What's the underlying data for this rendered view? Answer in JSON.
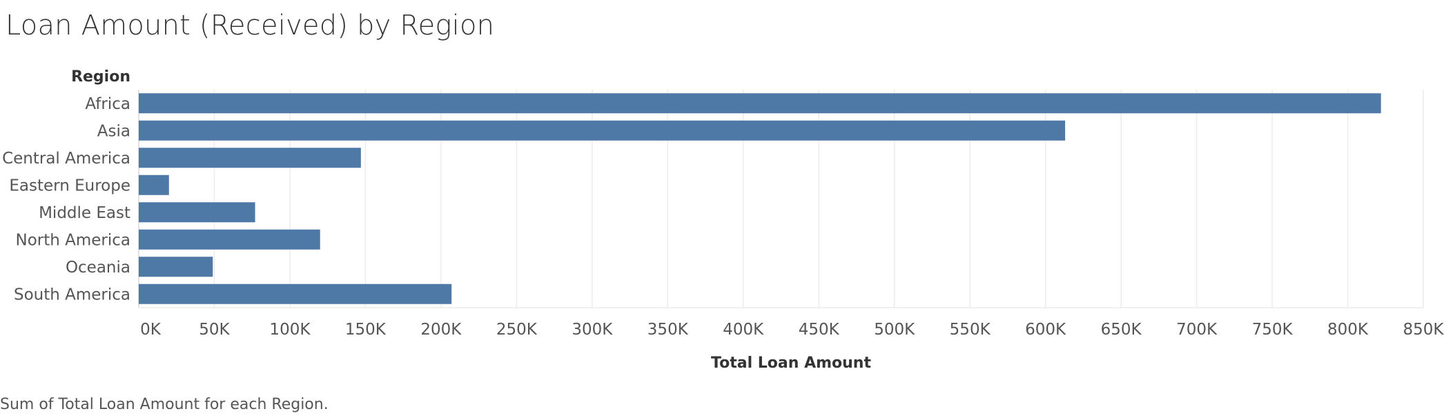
{
  "chart_data": {
    "type": "bar",
    "orientation": "horizontal",
    "title": "Loan Amount (Received) by Region",
    "category_axis_label": "Region",
    "xlabel": "Total Loan Amount",
    "categories": [
      "Africa",
      "Asia",
      "Central America",
      "Eastern Europe",
      "Middle East",
      "North America",
      "Oceania",
      "South America"
    ],
    "values": [
      822000,
      613000,
      147000,
      20000,
      77000,
      120000,
      49000,
      207000
    ],
    "xlim": [
      0,
      850000
    ],
    "x_ticks": [
      0,
      50000,
      100000,
      150000,
      200000,
      250000,
      300000,
      350000,
      400000,
      450000,
      500000,
      550000,
      600000,
      650000,
      700000,
      750000,
      800000,
      850000
    ],
    "x_tick_labels": [
      "0K",
      "50K",
      "100K",
      "150K",
      "200K",
      "250K",
      "300K",
      "350K",
      "400K",
      "450K",
      "500K",
      "550K",
      "600K",
      "650K",
      "700K",
      "750K",
      "800K",
      "850K"
    ],
    "grid": true,
    "bar_color": "#4e79a7",
    "caption": "Sum of Total Loan Amount for each Region."
  }
}
